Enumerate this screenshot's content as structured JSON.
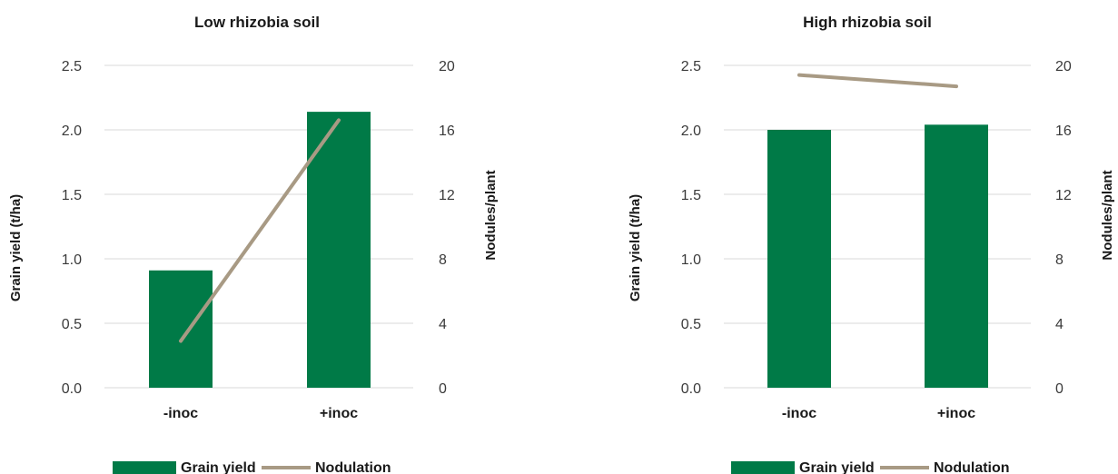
{
  "chart_data": [
    {
      "type": "bar",
      "title": "Low rhizobia soil",
      "categories": [
        "-inoc",
        "+inoc"
      ],
      "ylabel": "Grain yield (t/ha)",
      "y2label": "Nodules/plant",
      "ylim": [
        0,
        2.5
      ],
      "y2lim": [
        0,
        20
      ],
      "yticks": [
        "0.0",
        "0.5",
        "1.0",
        "1.5",
        "2.0",
        "2.5"
      ],
      "y2ticks": [
        "0",
        "4",
        "8",
        "12",
        "16",
        "20"
      ],
      "grid": true,
      "legend_position": "bottom",
      "series": [
        {
          "name": "Grain yield",
          "type": "bar",
          "axis": "left",
          "color": "#007a47",
          "values": [
            0.91,
            2.14
          ]
        },
        {
          "name": "Nodulation",
          "type": "line",
          "axis": "right",
          "color": "#a89a84",
          "values": [
            2.9,
            16.6
          ]
        }
      ]
    },
    {
      "type": "bar",
      "title": "High rhizobia soil",
      "categories": [
        "-inoc",
        "+inoc"
      ],
      "ylabel": "Grain yield (t/ha)",
      "y2label": "Nodules/plant",
      "ylim": [
        0,
        2.5
      ],
      "y2lim": [
        0,
        20
      ],
      "yticks": [
        "0.0",
        "0.5",
        "1.0",
        "1.5",
        "2.0",
        "2.5"
      ],
      "y2ticks": [
        "0",
        "4",
        "8",
        "12",
        "16",
        "20"
      ],
      "grid": true,
      "legend_position": "bottom",
      "series": [
        {
          "name": "Grain yield",
          "type": "bar",
          "axis": "left",
          "color": "#007a47",
          "values": [
            2.0,
            2.04
          ]
        },
        {
          "name": "Nodulation",
          "type": "line",
          "axis": "right",
          "color": "#a89a84",
          "values": [
            19.4,
            18.7
          ]
        }
      ]
    }
  ]
}
